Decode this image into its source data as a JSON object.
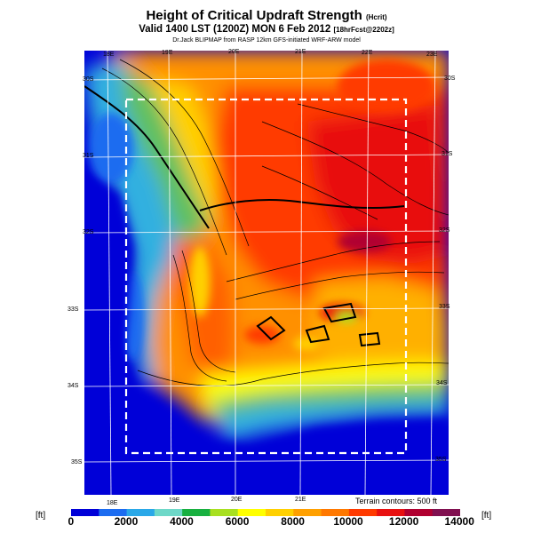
{
  "title": {
    "main": "Height of Critical Updraft Strength",
    "units": "(Hcrit)"
  },
  "subtitle": {
    "valid": "Valid 1400 LST (1200Z) MON 6 Feb 2012",
    "forecast": "[18hrFcst@2202z]"
  },
  "credits": "Dr.Jack BLIPMAP from RASP 12km GFS-initiated WRF-ARW model",
  "map": {
    "top_lon_labels": [
      "18E",
      "19E",
      "20E",
      "21E",
      "22E",
      "23E"
    ],
    "bottom_lon_labels": [
      "18E",
      "19E",
      "20E",
      "21E"
    ],
    "lat_labels": [
      "30S",
      "31S",
      "32S",
      "33S",
      "34S",
      "35S"
    ],
    "contour_note": "Terrain contours: 500 ft"
  },
  "colorbar": {
    "unit_label": "[ft]",
    "ticks": [
      "0",
      "2000",
      "4000",
      "6000",
      "8000",
      "10000",
      "12000",
      "14000"
    ],
    "colors": [
      "#0000d8",
      "#1c6cf0",
      "#2aa8e8",
      "#6ed8c8",
      "#18b040",
      "#a8e020",
      "#ffff00",
      "#ffd000",
      "#ffa000",
      "#ff7800",
      "#ff3a00",
      "#e81010",
      "#b00030",
      "#801050"
    ]
  }
}
